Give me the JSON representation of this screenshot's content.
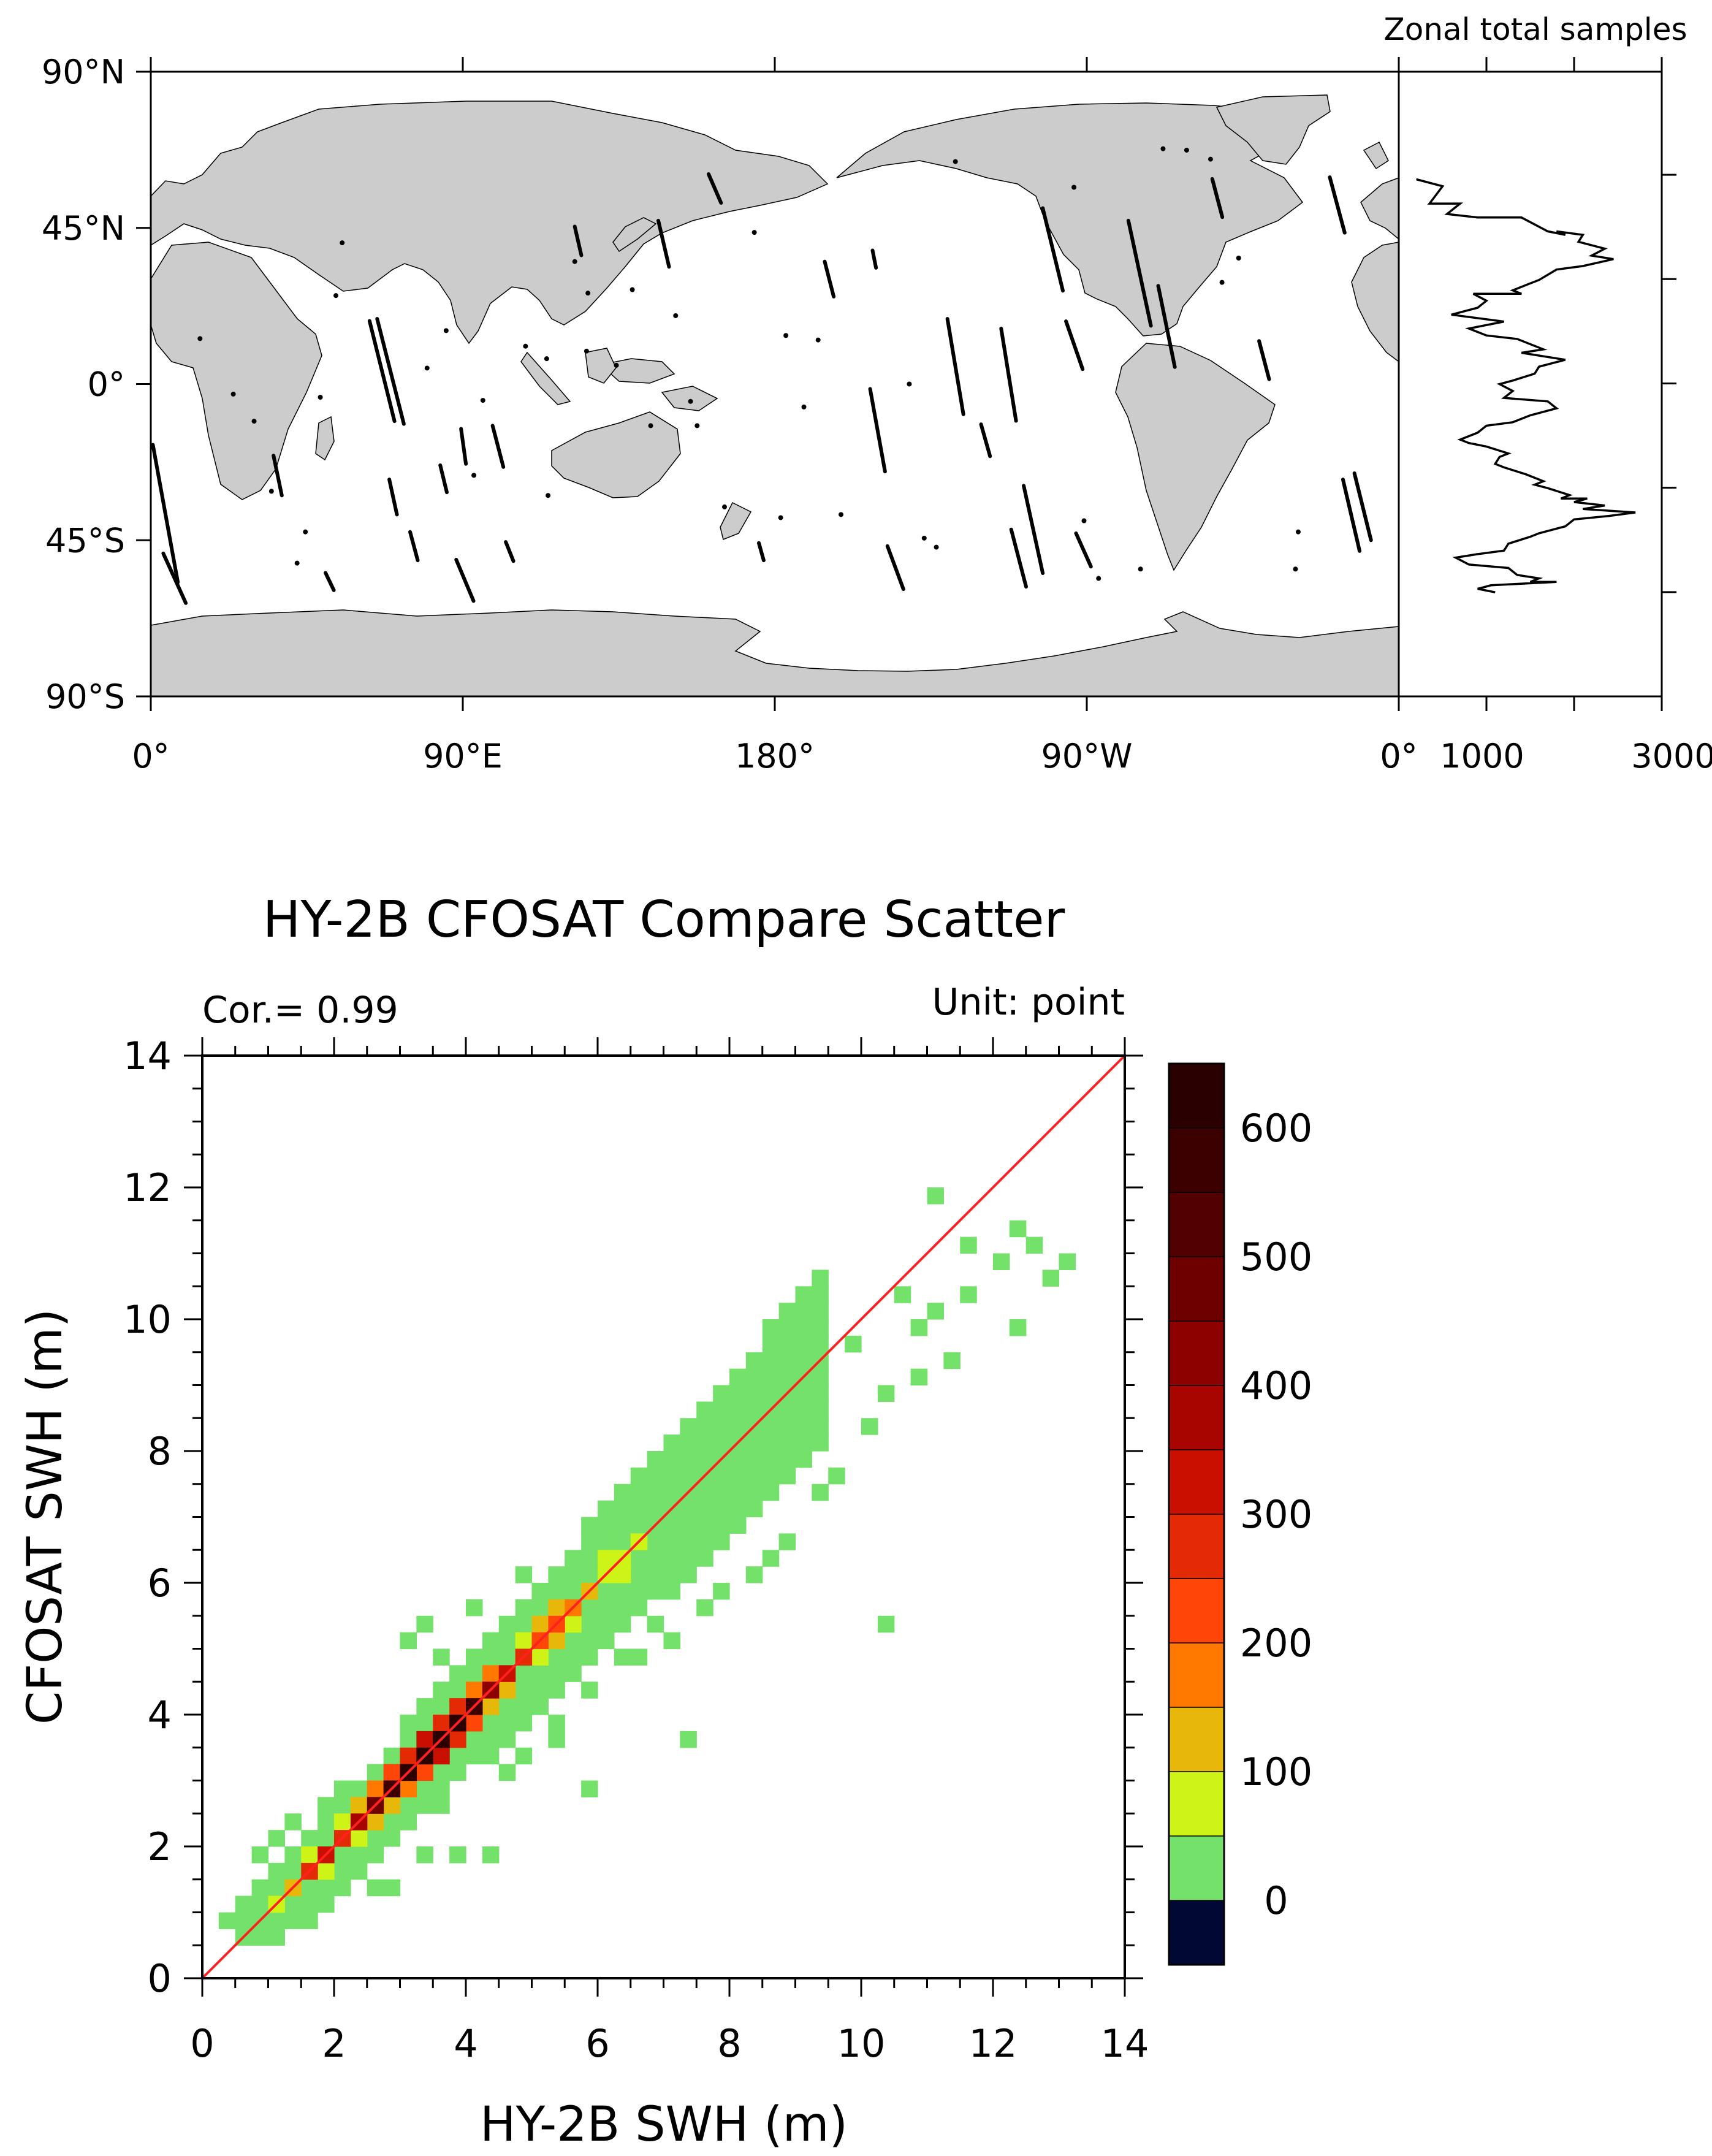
{
  "chart_data": [
    {
      "type": "map",
      "title": "",
      "xticks": [
        "0°",
        "90°E",
        "180°",
        "90°W",
        "0°"
      ],
      "yticks": [
        "90°N",
        "45°N",
        "0°",
        "45°S",
        "90°S"
      ],
      "lon_range": [
        0,
        360
      ],
      "lat_range": [
        -90,
        90
      ],
      "content": "HY-2B / CFOSAT collocation tracks over global ocean",
      "tracks": [
        {
          "lon_deg": 0.6,
          "lat_deg": -17.5,
          "d_lon_deg": 7.2,
          "d_lat_deg": -39.6
        },
        {
          "lon_deg": 3.6,
          "lat_deg": -48.8,
          "d_lon_deg": 6.5,
          "d_lat_deg": -14.3
        },
        {
          "lon_deg": 35.4,
          "lat_deg": -20.6,
          "d_lon_deg": 2.4,
          "d_lat_deg": -11.5
        },
        {
          "lon_deg": 50.4,
          "lat_deg": -54.4,
          "d_lon_deg": 2.4,
          "d_lat_deg": -5.0
        },
        {
          "lon_deg": 63.1,
          "lat_deg": 18.2,
          "d_lon_deg": 7.2,
          "d_lat_deg": -28.9
        },
        {
          "lon_deg": 65.3,
          "lat_deg": 18.8,
          "d_lon_deg": 7.7,
          "d_lat_deg": -30.3
        },
        {
          "lon_deg": 68.8,
          "lat_deg": -27.5,
          "d_lon_deg": 2.2,
          "d_lat_deg": -10.1
        },
        {
          "lon_deg": 74.8,
          "lat_deg": -42.6,
          "d_lon_deg": 2.2,
          "d_lat_deg": -8.2
        },
        {
          "lon_deg": 83.5,
          "lat_deg": -23.4,
          "d_lon_deg": 1.9,
          "d_lat_deg": -7.8
        },
        {
          "lon_deg": 88.1,
          "lat_deg": -50.6,
          "d_lon_deg": 5.0,
          "d_lat_deg": -11.9
        },
        {
          "lon_deg": 89.5,
          "lat_deg": -12.9,
          "d_lon_deg": 1.4,
          "d_lat_deg": -10.1
        },
        {
          "lon_deg": 98.6,
          "lat_deg": -12.0,
          "d_lon_deg": 3.1,
          "d_lat_deg": -11.9
        },
        {
          "lon_deg": 102.4,
          "lat_deg": -45.5,
          "d_lon_deg": 2.2,
          "d_lat_deg": -5.5
        },
        {
          "lon_deg": 122.3,
          "lat_deg": 45.4,
          "d_lon_deg": 1.9,
          "d_lat_deg": -8.3
        },
        {
          "lon_deg": 146.4,
          "lat_deg": 47.1,
          "d_lon_deg": 3.1,
          "d_lat_deg": -13.3
        },
        {
          "lon_deg": 160.9,
          "lat_deg": 60.5,
          "d_lon_deg": 3.6,
          "d_lat_deg": -8.3
        },
        {
          "lon_deg": 175.4,
          "lat_deg": -45.8,
          "d_lon_deg": 1.4,
          "d_lat_deg": -5.0
        },
        {
          "lon_deg": 194.4,
          "lat_deg": 35.3,
          "d_lon_deg": 2.6,
          "d_lat_deg": -10.1
        },
        {
          "lon_deg": 208.2,
          "lat_deg": 38.5,
          "d_lon_deg": 1.0,
          "d_lat_deg": -5.0
        },
        {
          "lon_deg": 207.5,
          "lat_deg": -1.4,
          "d_lon_deg": 4.3,
          "d_lat_deg": -23.8
        },
        {
          "lon_deg": 212.5,
          "lat_deg": -46.7,
          "d_lon_deg": 4.6,
          "d_lat_deg": -12.4
        },
        {
          "lon_deg": 229.8,
          "lat_deg": 18.8,
          "d_lon_deg": 4.6,
          "d_lat_deg": -27.5
        },
        {
          "lon_deg": 239.5,
          "lat_deg": -11.6,
          "d_lon_deg": 2.6,
          "d_lat_deg": -9.2
        },
        {
          "lon_deg": 245.3,
          "lat_deg": 16.0,
          "d_lon_deg": 4.3,
          "d_lat_deg": -26.6
        },
        {
          "lon_deg": 251.8,
          "lat_deg": -29.3,
          "d_lon_deg": 5.5,
          "d_lat_deg": -25.2
        },
        {
          "lon_deg": 248.2,
          "lat_deg": -41.9,
          "d_lon_deg": 4.3,
          "d_lat_deg": -16.5
        },
        {
          "lon_deg": 257.3,
          "lat_deg": 50.7,
          "d_lon_deg": 5.8,
          "d_lat_deg": -23.8
        },
        {
          "lon_deg": 264.0,
          "lat_deg": 18.1,
          "d_lon_deg": 4.8,
          "d_lat_deg": -13.8
        },
        {
          "lon_deg": 266.9,
          "lat_deg": -43.0,
          "d_lon_deg": 4.3,
          "d_lat_deg": -9.6
        },
        {
          "lon_deg": 282.0,
          "lat_deg": 47.1,
          "d_lon_deg": 6.5,
          "d_lat_deg": -30.3
        },
        {
          "lon_deg": 290.6,
          "lat_deg": 28.3,
          "d_lon_deg": 4.8,
          "d_lat_deg": -23.4
        },
        {
          "lon_deg": 306.2,
          "lat_deg": 59.1,
          "d_lon_deg": 2.9,
          "d_lat_deg": -11.0
        },
        {
          "lon_deg": 319.7,
          "lat_deg": 12.4,
          "d_lon_deg": 2.9,
          "d_lat_deg": -11.0
        },
        {
          "lon_deg": 340.1,
          "lat_deg": 59.6,
          "d_lon_deg": 4.3,
          "d_lat_deg": -16.0
        },
        {
          "lon_deg": 347.2,
          "lat_deg": -25.7,
          "d_lon_deg": 4.8,
          "d_lat_deg": -19.3
        },
        {
          "lon_deg": 343.9,
          "lat_deg": -27.5,
          "d_lon_deg": 4.8,
          "d_lat_deg": -20.6
        }
      ],
      "dots": [
        [
          14.2,
          13.1
        ],
        [
          23.8,
          -2.9
        ],
        [
          29.8,
          -10.7
        ],
        [
          34.8,
          -30.9
        ],
        [
          42.2,
          -51.6
        ],
        [
          44.6,
          -42.6
        ],
        [
          48.9,
          -3.8
        ],
        [
          53.4,
          25.5
        ],
        [
          55.2,
          40.7
        ],
        [
          79.7,
          4.6
        ],
        [
          85.2,
          15.4
        ],
        [
          95.8,
          -4.7
        ],
        [
          93.2,
          -26.3
        ],
        [
          108.1,
          10.9
        ],
        [
          114.6,
          -32.1
        ],
        [
          114.2,
          7.3
        ],
        [
          122.3,
          35.3
        ],
        [
          126.1,
          26.2
        ],
        [
          125.7,
          9.5
        ],
        [
          134.3,
          5.4
        ],
        [
          138.9,
          27.2
        ],
        [
          144.2,
          -12.0
        ],
        [
          151.4,
          19.7
        ],
        [
          155.7,
          -5.0
        ],
        [
          157.6,
          -12.0
        ],
        [
          165.5,
          -35.4
        ],
        [
          174.1,
          43.7
        ],
        [
          181.7,
          -38.5
        ],
        [
          188.4,
          -6.6
        ],
        [
          183.2,
          14.0
        ],
        [
          192.5,
          12.7
        ],
        [
          199.1,
          -37.6
        ],
        [
          223.1,
          -44.4
        ],
        [
          226.6,
          -47.0
        ],
        [
          218.8,
          0.0
        ],
        [
          232.1,
          64.1
        ],
        [
          266.3,
          56.7
        ],
        [
          269.2,
          -39.4
        ],
        [
          273.4,
          -56.0
        ],
        [
          285.5,
          -53.3
        ],
        [
          292.0,
          67.8
        ],
        [
          298.8,
          67.4
        ],
        [
          305.7,
          64.8
        ],
        [
          309.0,
          29.3
        ],
        [
          313.8,
          36.3
        ],
        [
          331.0,
          -42.6
        ],
        [
          330.2,
          -53.3
        ]
      ]
    },
    {
      "type": "line",
      "title": "Zonal total samples",
      "xticks": [
        "0°",
        "1000",
        "3000"
      ],
      "xlim": [
        0,
        3000
      ],
      "ylim": [
        -90,
        90
      ],
      "x": [
        200,
        500,
        350,
        700,
        550,
        900,
        1400,
        1700,
        1900,
        1800,
        2100,
        2050,
        2350,
        2200,
        2450,
        2100,
        1800,
        1600,
        1500,
        1300,
        1400,
        1150,
        850,
        1000,
        900,
        600,
        1200,
        800,
        1000,
        1350,
        1650,
        1400,
        1900,
        1600,
        1550,
        1300,
        1150,
        1300,
        1200,
        1700,
        1800,
        1500,
        1300,
        1000,
        900,
        700,
        800,
        1000,
        1250,
        1150,
        1100,
        1200,
        1450,
        1650,
        1550,
        1700,
        1950,
        1850,
        2150,
        2000,
        2350,
        2100,
        2700,
        2400,
        2000,
        1900,
        1600,
        1500,
        1250,
        1200,
        900,
        650,
        800,
        1250,
        1350,
        1600,
        1500,
        1800,
        1050,
        900,
        1100
      ],
      "y": [
        59,
        57,
        52,
        52,
        49,
        48,
        48,
        44,
        43,
        44,
        43,
        41,
        39,
        37,
        36,
        34,
        33,
        30,
        29,
        27,
        26,
        26,
        26,
        24,
        22,
        20,
        18,
        16,
        14,
        13,
        10,
        9,
        7,
        5,
        3,
        1,
        0,
        -2,
        -4,
        -5,
        -7,
        -9,
        -11,
        -12,
        -14,
        -16,
        -17,
        -18,
        -20,
        -21,
        -23,
        -24,
        -26,
        -28,
        -29,
        -30,
        -32,
        -33,
        -33,
        -34,
        -35,
        -36,
        -37,
        -38,
        -39,
        -41,
        -43,
        -44,
        -46,
        -48,
        -49,
        -50,
        -52,
        -53,
        -55,
        -56,
        -57,
        -57,
        -58,
        -59,
        -60
      ]
    },
    {
      "type": "heatmap",
      "title": "HY-2B CFOSAT Compare Scatter",
      "xlabel": "HY-2B SWH (m)",
      "ylabel": "CFOSAT SWH (m)",
      "annotation_left": "Cor.= 0.99",
      "annotation_right": "Unit: point",
      "xlim": [
        0,
        14
      ],
      "ylim": [
        0,
        14
      ],
      "xticks": [
        "0",
        "2",
        "4",
        "6",
        "8",
        "10",
        "12",
        "14"
      ],
      "yticks": [
        "0",
        "2",
        "4",
        "6",
        "8",
        "10",
        "12",
        "14"
      ],
      "bin_size_m": 0.25,
      "reference_line": "y = x",
      "colorbar": {
        "labels": [
          "0",
          "100",
          "200",
          "300",
          "400",
          "500",
          "600"
        ],
        "label_values": [
          0,
          100,
          200,
          300,
          400,
          500,
          600
        ],
        "range": [
          -50,
          650
        ],
        "colors": [
          "#000833",
          "#74e26a",
          "#cdf317",
          "#e7b70a",
          "#ff7800",
          "#ff4608",
          "#e42a04",
          "#c80f00",
          "#a80400",
          "#8d0101",
          "#6f0000",
          "#530000",
          "#3c0000",
          "#2a0000"
        ]
      },
      "zero_band_cells": [
        [
          11,
          11.75
        ],
        [
          9.75,
          9.5
        ],
        [
          10.75,
          9.75
        ],
        [
          12.75,
          10.5
        ],
        [
          10.25,
          5.25
        ],
        [
          5.75,
          2.75
        ],
        [
          7.25,
          3.5
        ],
        [
          5.25,
          3.5
        ],
        [
          4.25,
          1.75
        ],
        [
          3.75,
          1.75
        ],
        [
          2.5,
          1.25
        ],
        [
          0.5,
          1
        ],
        [
          10.25,
          8.75
        ],
        [
          11.5,
          10.25
        ],
        [
          12.25,
          9.75
        ],
        [
          6.5,
          4.75
        ],
        [
          6.75,
          5.25
        ],
        [
          7.5,
          5.5
        ],
        [
          7.75,
          5.75
        ],
        [
          8.25,
          6
        ],
        [
          8.5,
          6.25
        ],
        [
          8.75,
          6.5
        ],
        [
          9.25,
          7.25
        ],
        [
          9.5,
          7.5
        ],
        [
          10,
          8.25
        ],
        [
          2,
          2.75
        ],
        [
          1.75,
          2.5
        ],
        [
          1.25,
          2.25
        ],
        [
          1,
          2
        ],
        [
          0.75,
          1.75
        ],
        [
          3.25,
          5.25
        ],
        [
          3,
          5
        ],
        [
          4.25,
          5
        ],
        [
          3.5,
          4.75
        ],
        [
          4,
          5.5
        ],
        [
          5,
          5.75
        ],
        [
          4.75,
          6
        ],
        [
          5.5,
          6.25
        ],
        [
          6,
          6.75
        ],
        [
          6.25,
          7
        ],
        [
          6.75,
          7.5
        ],
        [
          7.25,
          8
        ],
        [
          7.75,
          8.5
        ],
        [
          8.5,
          8.75
        ],
        [
          8.75,
          9
        ],
        [
          3.5,
          2.5
        ],
        [
          4.5,
          3
        ],
        [
          4.75,
          3.25
        ],
        [
          5.25,
          3.75
        ],
        [
          5.75,
          4.25
        ],
        [
          6.25,
          4.75
        ],
        [
          7,
          5
        ],
        [
          7,
          6
        ],
        [
          6.5,
          5.5
        ],
        [
          7.25,
          6.75
        ],
        [
          2.75,
          1.25
        ],
        [
          3.25,
          1.75
        ],
        [
          2.75,
          2
        ],
        [
          2.25,
          1.5
        ],
        [
          1.5,
          1
        ],
        [
          1.25,
          0.75
        ],
        [
          1,
          0.5
        ],
        [
          0.75,
          0.75
        ],
        [
          0.5,
          0.5
        ],
        [
          0.25,
          0.75
        ],
        [
          10.75,
          9
        ],
        [
          11.25,
          9.25
        ],
        [
          11,
          10
        ],
        [
          12,
          10.75
        ],
        [
          12.5,
          11
        ],
        [
          11.5,
          11
        ],
        [
          12.25,
          11.25
        ],
        [
          10.5,
          10.25
        ],
        [
          13,
          10.75
        ],
        [
          9,
          8.25
        ],
        [
          8,
          7.25
        ],
        [
          7.5,
          6.75
        ],
        [
          3.75,
          3.25
        ],
        [
          4.25,
          3.75
        ],
        [
          5,
          4.5
        ],
        [
          1.5,
          1.5
        ],
        [
          2,
          1.75
        ],
        [
          2.5,
          2.25
        ],
        [
          1.75,
          1.25
        ],
        [
          2.25,
          2
        ]
      ],
      "diagonal_counts": [
        [
          0.75,
          0.75,
          30
        ],
        [
          1.0,
          1.0,
          90
        ],
        [
          1.25,
          1.25,
          140
        ],
        [
          1.5,
          1.5,
          260
        ],
        [
          1.75,
          1.75,
          320
        ],
        [
          2.0,
          2.0,
          280
        ],
        [
          2.25,
          2.25,
          380
        ],
        [
          2.5,
          2.5,
          480
        ],
        [
          2.75,
          2.75,
          550
        ],
        [
          3.0,
          3.0,
          600
        ],
        [
          3.25,
          3.25,
          610
        ],
        [
          3.5,
          3.5,
          620
        ],
        [
          3.75,
          3.75,
          600
        ],
        [
          4.0,
          4.0,
          560
        ],
        [
          4.25,
          4.25,
          420
        ],
        [
          4.5,
          4.5,
          320
        ],
        [
          4.75,
          4.75,
          280
        ],
        [
          5.0,
          5.0,
          230
        ],
        [
          5.25,
          5.25,
          240
        ],
        [
          5.5,
          5.5,
          170
        ],
        [
          5.75,
          5.75,
          120
        ],
        [
          6.0,
          6.0,
          90
        ],
        [
          6.25,
          6.25,
          70
        ],
        [
          6.5,
          6.5,
          60
        ]
      ],
      "offdiag_counts": [
        [
          2.75,
          3.0,
          200
        ],
        [
          3.0,
          2.75,
          180
        ],
        [
          3.25,
          3.5,
          320
        ],
        [
          3.5,
          3.25,
          300
        ],
        [
          3.75,
          4.0,
          250
        ],
        [
          4.0,
          3.75,
          220
        ],
        [
          2.5,
          2.75,
          160
        ],
        [
          2.75,
          2.5,
          140
        ],
        [
          2.25,
          2.5,
          110
        ],
        [
          2.5,
          2.25,
          100
        ],
        [
          4.25,
          4.5,
          150
        ],
        [
          4.5,
          4.25,
          120
        ],
        [
          3.0,
          3.25,
          260
        ],
        [
          3.25,
          3.0,
          240
        ],
        [
          3.5,
          3.75,
          280
        ],
        [
          3.75,
          3.5,
          260
        ],
        [
          2.0,
          2.25,
          80
        ],
        [
          2.25,
          2.0,
          70
        ],
        [
          4.75,
          5.0,
          90
        ],
        [
          5.0,
          4.75,
          80
        ],
        [
          5.25,
          5.5,
          110
        ],
        [
          5.5,
          5.25,
          95
        ],
        [
          6.0,
          6.25,
          60
        ],
        [
          6.25,
          6.0,
          50
        ],
        [
          1.5,
          1.75,
          60
        ],
        [
          1.75,
          1.5,
          50
        ],
        [
          4.0,
          4.25,
          160
        ],
        [
          4.25,
          4.0,
          140
        ],
        [
          5.0,
          5.25,
          120
        ],
        [
          5.25,
          5.0,
          100
        ],
        [
          6.25,
          6.5,
          40
        ],
        [
          6.5,
          6.25,
          35
        ]
      ]
    }
  ]
}
